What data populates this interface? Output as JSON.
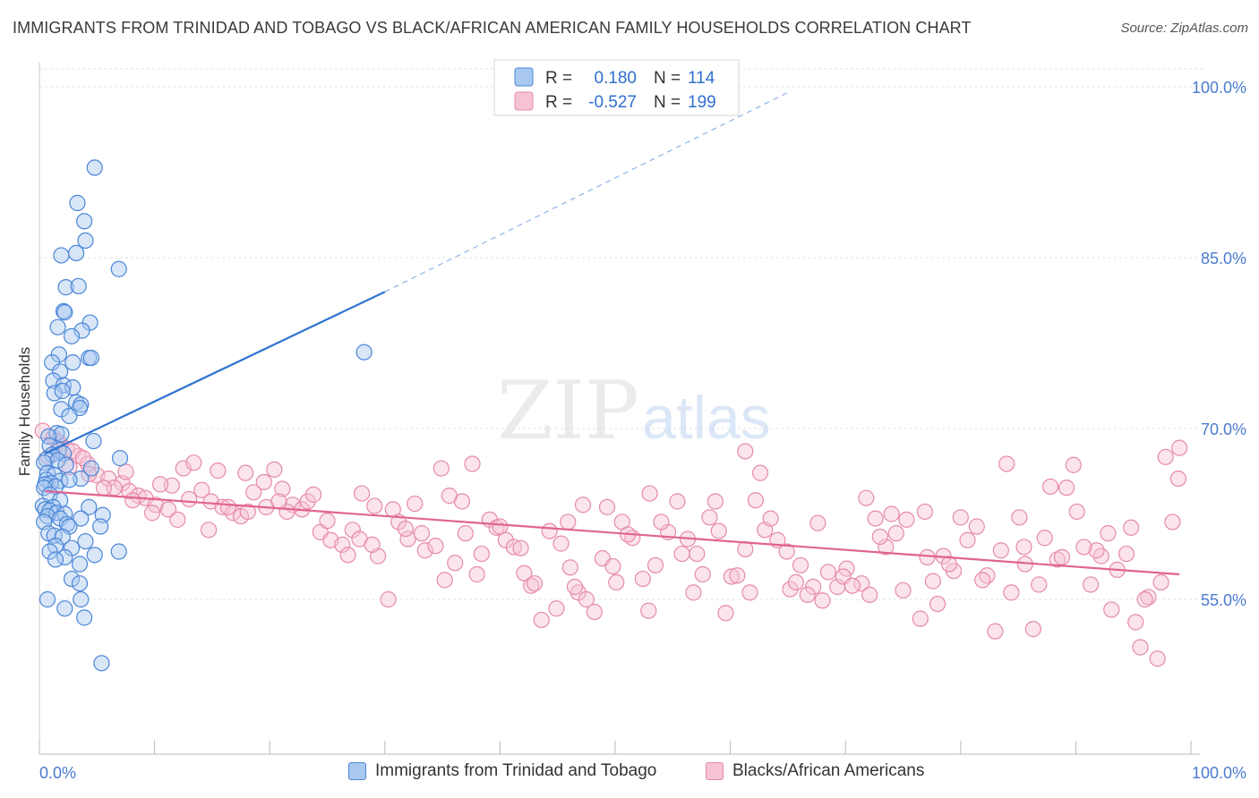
{
  "title": "IMMIGRANTS FROM TRINIDAD AND TOBAGO VS BLACK/AFRICAN AMERICAN FAMILY HOUSEHOLDS CORRELATION CHART",
  "source": "Source: ZipAtlas.com",
  "watermark": {
    "zip": "ZIP",
    "atlas": "atlas"
  },
  "colors": {
    "blue_fill": "#a9c8ef",
    "blue_stroke": "#4a86d8",
    "blue_line": "#2f74d0",
    "pink_fill": "#f6c3d4",
    "pink_stroke": "#e68aa9",
    "pink_line": "#e0648f",
    "axis_text": "#4a7bd0",
    "grid": "#e3e3e3"
  },
  "legend": {
    "rows": [
      {
        "r_label": "R =",
        "r_value": "0.180",
        "n_label": "N =",
        "n_value": "114"
      },
      {
        "r_label": "R =",
        "r_value": "-0.527",
        "n_label": "N =",
        "n_value": "199"
      }
    ]
  },
  "bottom_legend": {
    "series1": "Immigrants from Trinidad and Tobago",
    "series2": "Blacks/African Americans"
  },
  "chart_data": {
    "type": "scatter",
    "title": "IMMIGRANTS FROM TRINIDAD AND TOBAGO VS BLACK/AFRICAN AMERICAN FAMILY HOUSEHOLDS CORRELATION CHART",
    "xlabel": "",
    "ylabel": "Family Households",
    "xlim": [
      0,
      100
    ],
    "ylim": [
      40,
      102
    ],
    "x_tick_labels": [
      "0.0%",
      "100.0%"
    ],
    "y_ticks": [
      55,
      70,
      85,
      100
    ],
    "y_tick_labels": [
      "55.0%",
      "70.0%",
      "85.0%",
      "100.0%"
    ],
    "grid": true,
    "legend_position": "top-center",
    "series": [
      {
        "name": "Immigrants from Trinidad and Tobago",
        "color": "#4a86d8",
        "R": 0.18,
        "N": 114,
        "trend": {
          "x": [
            0.5,
            30
          ],
          "y": [
            67.8,
            82
          ],
          "dashed_extension": {
            "x": [
              30,
              65
            ],
            "y": [
              82,
              99.5
            ]
          }
        },
        "points": [
          [
            4.8,
            92.9
          ],
          [
            3.3,
            89.8
          ],
          [
            3.9,
            88.2
          ],
          [
            4.0,
            86.5
          ],
          [
            1.9,
            85.2
          ],
          [
            3.2,
            85.4
          ],
          [
            6.9,
            84.0
          ],
          [
            2.3,
            82.4
          ],
          [
            3.4,
            82.5
          ],
          [
            2.1,
            80.3
          ],
          [
            2.2,
            80.2
          ],
          [
            1.6,
            78.9
          ],
          [
            4.4,
            79.3
          ],
          [
            3.7,
            78.6
          ],
          [
            2.8,
            78.1
          ],
          [
            1.7,
            76.5
          ],
          [
            4.3,
            76.2
          ],
          [
            4.5,
            76.2
          ],
          [
            1.1,
            75.8
          ],
          [
            2.9,
            75.8
          ],
          [
            1.8,
            75.0
          ],
          [
            1.2,
            74.2
          ],
          [
            2.1,
            73.8
          ],
          [
            2.9,
            73.6
          ],
          [
            1.3,
            73.1
          ],
          [
            2.0,
            73.3
          ],
          [
            3.2,
            72.3
          ],
          [
            3.6,
            72.1
          ],
          [
            1.9,
            71.7
          ],
          [
            3.5,
            71.8
          ],
          [
            2.6,
            71.1
          ],
          [
            1.5,
            69.6
          ],
          [
            1.9,
            69.5
          ],
          [
            0.8,
            69.3
          ],
          [
            4.7,
            68.9
          ],
          [
            0.9,
            68.5
          ],
          [
            1.7,
            68.1
          ],
          [
            2.1,
            67.8
          ],
          [
            1.1,
            67.7
          ],
          [
            0.6,
            67.3
          ],
          [
            7.0,
            67.4
          ],
          [
            1.6,
            67.2
          ],
          [
            0.4,
            67.0
          ],
          [
            2.3,
            66.8
          ],
          [
            4.5,
            66.5
          ],
          [
            0.7,
            66.1
          ],
          [
            1.3,
            65.9
          ],
          [
            3.6,
            65.6
          ],
          [
            0.6,
            65.5
          ],
          [
            1.8,
            65.4
          ],
          [
            1.0,
            65.2
          ],
          [
            0.5,
            65.1
          ],
          [
            1.4,
            64.9
          ],
          [
            2.6,
            65.5
          ],
          [
            0.4,
            64.8
          ],
          [
            0.9,
            64.2
          ],
          [
            1.8,
            63.7
          ],
          [
            0.3,
            63.2
          ],
          [
            1.2,
            63.1
          ],
          [
            4.3,
            63.1
          ],
          [
            0.5,
            62.9
          ],
          [
            0.9,
            62.8
          ],
          [
            1.5,
            62.6
          ],
          [
            2.2,
            62.5
          ],
          [
            5.5,
            62.4
          ],
          [
            0.7,
            62.3
          ],
          [
            1.8,
            62.1
          ],
          [
            3.6,
            62.1
          ],
          [
            0.4,
            61.8
          ],
          [
            2.4,
            61.6
          ],
          [
            2.6,
            61.4
          ],
          [
            5.3,
            61.4
          ],
          [
            0.8,
            60.8
          ],
          [
            1.3,
            60.6
          ],
          [
            2.0,
            60.5
          ],
          [
            4.0,
            60.1
          ],
          [
            1.4,
            59.7
          ],
          [
            2.8,
            59.5
          ],
          [
            0.9,
            59.2
          ],
          [
            6.9,
            59.2
          ],
          [
            4.8,
            58.9
          ],
          [
            2.2,
            58.7
          ],
          [
            1.4,
            58.5
          ],
          [
            3.5,
            58.1
          ],
          [
            2.8,
            56.8
          ],
          [
            3.5,
            56.4
          ],
          [
            0.7,
            55.0
          ],
          [
            3.6,
            55.0
          ],
          [
            2.2,
            54.2
          ],
          [
            3.9,
            53.4
          ],
          [
            5.4,
            49.4
          ],
          [
            28.2,
            76.7
          ]
        ]
      },
      {
        "name": "Blacks/African Americans",
        "color": "#e68aa9",
        "R": -0.527,
        "N": 199,
        "trend": {
          "x": [
            0.5,
            99
          ],
          "y": [
            64.5,
            57.2
          ]
        },
        "points": [
          [
            0.3,
            69.8
          ],
          [
            1.2,
            69.2
          ],
          [
            1.8,
            68.7
          ],
          [
            2.4,
            68.2
          ],
          [
            3.4,
            67.6
          ],
          [
            0.8,
            67.5
          ],
          [
            4.2,
            66.9
          ],
          [
            2.6,
            66.6
          ],
          [
            5.0,
            65.9
          ],
          [
            6.0,
            65.6
          ],
          [
            7.2,
            65.2
          ],
          [
            7.8,
            64.5
          ],
          [
            8.6,
            64.1
          ],
          [
            9.2,
            63.9
          ],
          [
            10.1,
            63.3
          ],
          [
            11.2,
            62.9
          ],
          [
            12.5,
            66.5
          ],
          [
            13.4,
            67.0
          ],
          [
            14.1,
            64.6
          ],
          [
            14.9,
            63.6
          ],
          [
            15.9,
            63.1
          ],
          [
            16.8,
            62.6
          ],
          [
            17.5,
            62.3
          ],
          [
            18.6,
            64.4
          ],
          [
            19.5,
            65.3
          ],
          [
            20.4,
            66.4
          ],
          [
            21.1,
            64.7
          ],
          [
            22.0,
            63.3
          ],
          [
            22.8,
            62.9
          ],
          [
            24.4,
            60.9
          ],
          [
            25.3,
            60.2
          ],
          [
            26.3,
            59.8
          ],
          [
            27.2,
            61.1
          ],
          [
            28.0,
            64.3
          ],
          [
            29.1,
            63.2
          ],
          [
            30.7,
            62.9
          ],
          [
            31.2,
            61.8
          ],
          [
            32.0,
            60.3
          ],
          [
            33.5,
            59.3
          ],
          [
            34.4,
            59.7
          ],
          [
            35.2,
            56.7
          ],
          [
            36.1,
            58.2
          ],
          [
            37.0,
            60.8
          ],
          [
            38.4,
            59.0
          ],
          [
            39.1,
            62.0
          ],
          [
            40.5,
            60.2
          ],
          [
            41.2,
            59.6
          ],
          [
            42.1,
            57.3
          ],
          [
            42.7,
            56.2
          ],
          [
            44.3,
            61.0
          ],
          [
            45.3,
            59.9
          ],
          [
            46.1,
            57.8
          ],
          [
            46.8,
            55.6
          ],
          [
            47.5,
            55.0
          ],
          [
            48.9,
            58.6
          ],
          [
            49.8,
            57.9
          ],
          [
            50.6,
            61.8
          ],
          [
            51.5,
            60.4
          ],
          [
            52.4,
            56.8
          ],
          [
            53.5,
            58.0
          ],
          [
            54.6,
            60.9
          ],
          [
            55.4,
            63.6
          ],
          [
            56.3,
            60.3
          ],
          [
            57.1,
            59.0
          ],
          [
            58.2,
            62.2
          ],
          [
            59.0,
            61.0
          ],
          [
            60.1,
            57.0
          ],
          [
            61.3,
            59.4
          ],
          [
            62.2,
            63.7
          ],
          [
            63.0,
            61.1
          ],
          [
            64.1,
            60.2
          ],
          [
            65.2,
            55.9
          ],
          [
            66.1,
            58.0
          ],
          [
            67.2,
            56.1
          ],
          [
            68.0,
            54.9
          ],
          [
            69.3,
            56.1
          ],
          [
            70.1,
            57.7
          ],
          [
            71.4,
            56.4
          ],
          [
            72.6,
            62.1
          ],
          [
            73.5,
            59.6
          ],
          [
            74.4,
            60.8
          ],
          [
            75.3,
            62.0
          ],
          [
            76.5,
            53.3
          ],
          [
            77.6,
            56.6
          ],
          [
            78.5,
            58.8
          ],
          [
            79.4,
            57.5
          ],
          [
            80.6,
            60.2
          ],
          [
            81.4,
            61.4
          ],
          [
            82.3,
            57.1
          ],
          [
            83.5,
            59.3
          ],
          [
            84.4,
            55.6
          ],
          [
            85.6,
            58.1
          ],
          [
            86.3,
            52.4
          ],
          [
            87.3,
            60.4
          ],
          [
            88.4,
            58.5
          ],
          [
            89.2,
            64.8
          ],
          [
            90.1,
            62.7
          ],
          [
            91.3,
            56.3
          ],
          [
            92.2,
            58.8
          ],
          [
            93.1,
            54.1
          ],
          [
            94.4,
            59.0
          ],
          [
            95.2,
            53.0
          ],
          [
            96.3,
            55.2
          ],
          [
            97.1,
            49.8
          ],
          [
            97.8,
            67.5
          ],
          [
            99.0,
            68.3
          ],
          [
            98.4,
            61.8
          ],
          [
            4.3,
            66.0
          ],
          [
            6.5,
            64.8
          ],
          [
            8.1,
            63.7
          ],
          [
            9.8,
            62.6
          ],
          [
            11.5,
            65.0
          ],
          [
            13.0,
            63.8
          ],
          [
            14.7,
            61.1
          ],
          [
            16.4,
            63.1
          ],
          [
            17.9,
            66.1
          ],
          [
            19.7,
            63.1
          ],
          [
            21.5,
            62.7
          ],
          [
            23.3,
            63.6
          ],
          [
            25.0,
            61.9
          ],
          [
            27.8,
            60.3
          ],
          [
            29.4,
            58.8
          ],
          [
            31.8,
            61.2
          ],
          [
            33.2,
            60.8
          ],
          [
            34.9,
            66.5
          ],
          [
            36.7,
            63.6
          ],
          [
            38.0,
            57.2
          ],
          [
            39.7,
            61.3
          ],
          [
            41.8,
            59.5
          ],
          [
            43.6,
            53.2
          ],
          [
            45.9,
            61.8
          ],
          [
            47.2,
            63.3
          ],
          [
            49.3,
            63.1
          ],
          [
            51.1,
            60.7
          ],
          [
            52.9,
            54.0
          ],
          [
            54.0,
            61.8
          ],
          [
            55.8,
            59.0
          ],
          [
            57.6,
            57.2
          ],
          [
            59.6,
            53.8
          ],
          [
            61.7,
            55.6
          ],
          [
            63.5,
            62.1
          ],
          [
            64.9,
            59.2
          ],
          [
            66.7,
            55.4
          ],
          [
            68.5,
            57.4
          ],
          [
            69.8,
            57.0
          ],
          [
            71.8,
            63.9
          ],
          [
            73.0,
            60.5
          ],
          [
            75.0,
            55.8
          ],
          [
            76.9,
            62.7
          ],
          [
            78.0,
            54.6
          ],
          [
            80.0,
            62.2
          ],
          [
            81.9,
            56.7
          ],
          [
            84.0,
            66.9
          ],
          [
            85.1,
            62.2
          ],
          [
            86.8,
            56.3
          ],
          [
            88.8,
            58.7
          ],
          [
            89.8,
            66.8
          ],
          [
            91.8,
            59.3
          ],
          [
            93.6,
            57.6
          ],
          [
            94.8,
            61.3
          ],
          [
            96.0,
            55.0
          ],
          [
            97.4,
            56.5
          ],
          [
            98.9,
            65.6
          ],
          [
            1.5,
            68.9
          ],
          [
            2.9,
            68.0
          ],
          [
            3.8,
            67.4
          ],
          [
            5.6,
            64.8
          ],
          [
            7.5,
            66.2
          ],
          [
            10.5,
            65.1
          ],
          [
            12.0,
            62.0
          ],
          [
            15.5,
            66.3
          ],
          [
            18.1,
            62.7
          ],
          [
            20.8,
            63.6
          ],
          [
            23.8,
            64.2
          ],
          [
            26.8,
            58.9
          ],
          [
            28.9,
            59.8
          ],
          [
            30.3,
            55.0
          ],
          [
            32.6,
            63.4
          ],
          [
            35.6,
            64.1
          ],
          [
            37.6,
            66.9
          ],
          [
            40.0,
            61.4
          ],
          [
            43.0,
            56.4
          ],
          [
            44.9,
            54.2
          ],
          [
            46.5,
            56.1
          ],
          [
            48.2,
            53.9
          ],
          [
            50.1,
            56.5
          ],
          [
            53.0,
            64.3
          ],
          [
            56.8,
            55.6
          ],
          [
            58.7,
            63.6
          ],
          [
            60.6,
            57.1
          ],
          [
            62.6,
            66.1
          ],
          [
            65.7,
            56.5
          ],
          [
            67.6,
            61.7
          ],
          [
            70.6,
            56.2
          ],
          [
            72.1,
            55.4
          ],
          [
            74.0,
            62.5
          ],
          [
            77.1,
            58.7
          ],
          [
            79.0,
            58.1
          ],
          [
            83.0,
            52.2
          ],
          [
            85.5,
            59.6
          ],
          [
            87.8,
            64.9
          ],
          [
            90.7,
            59.6
          ],
          [
            92.8,
            60.8
          ],
          [
            95.6,
            50.8
          ],
          [
            61.3,
            68.0
          ]
        ]
      }
    ]
  }
}
